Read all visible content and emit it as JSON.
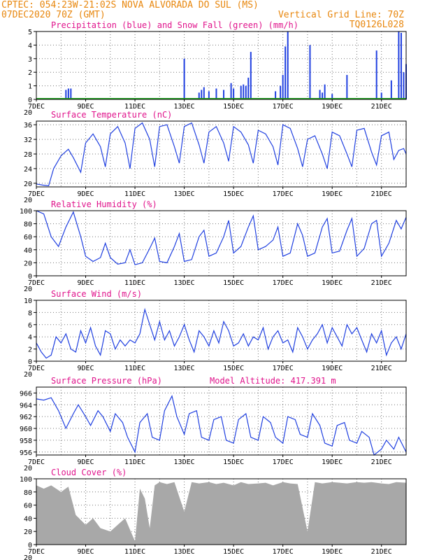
{
  "header": {
    "line1_left": "CPTEC:  054:23W-21:02S  NOVA ALVORADA DO SUL (MS)",
    "line2_left": "07DEC2020 70Z (GMT)",
    "line2_right": "Vertical Grid Line: 70Z",
    "line3_right": "TQ0126L028"
  },
  "colors": {
    "header": "#e8870e",
    "titles": "#e0148c",
    "series": "#2040e0",
    "snow": "#20a020",
    "cloud": "#a8a8a8"
  },
  "x_axis": {
    "start": "07DEC2020",
    "end": "22DEC2020",
    "labels": [
      {
        "day": 7,
        "text": "7DEC"
      },
      {
        "day": 9,
        "text": "9DEC"
      },
      {
        "day": 11,
        "text": "11DEC"
      },
      {
        "day": 13,
        "text": "13DEC"
      },
      {
        "day": 15,
        "text": "15DEC"
      },
      {
        "day": 17,
        "text": "17DEC"
      },
      {
        "day": 19,
        "text": "19DEC"
      },
      {
        "day": 21,
        "text": "21DEC"
      }
    ],
    "year_fragment": "20"
  },
  "chart_data": [
    {
      "type": "bar",
      "title": "Precipitation (blue) and Snow Fall (green) (mm/h)",
      "ylim": [
        0,
        5
      ],
      "yticks": [
        0,
        1,
        2,
        3,
        4,
        5
      ],
      "series": [
        {
          "name": "Precipitation",
          "x": [
            8.2,
            8.3,
            8.4,
            13.0,
            13.6,
            13.7,
            13.8,
            14.0,
            14.3,
            14.6,
            14.9,
            15.0,
            15.3,
            15.4,
            15.5,
            15.6,
            15.7,
            16.7,
            16.9,
            17.0,
            17.1,
            17.2,
            18.1,
            18.5,
            18.6,
            18.7,
            19.0,
            19.6,
            20.8,
            21.0,
            21.4,
            21.7,
            21.8,
            21.9,
            22.0
          ],
          "values": [
            0.7,
            0.8,
            0.8,
            3.0,
            0.5,
            0.7,
            0.9,
            0.6,
            0.8,
            0.7,
            1.2,
            0.8,
            1.0,
            1.1,
            1.0,
            1.6,
            3.5,
            0.6,
            1.0,
            1.8,
            3.9,
            5.0,
            4.0,
            0.7,
            0.5,
            1.1,
            0.4,
            1.8,
            3.6,
            0.5,
            1.4,
            5.0,
            4.9,
            2.0,
            2.6
          ]
        },
        {
          "name": "Snow Fall",
          "x": [],
          "values": []
        }
      ]
    },
    {
      "type": "line",
      "title": "Surface Temperature (nC)",
      "ylim": [
        19,
        37
      ],
      "yticks": [
        20,
        24,
        28,
        32,
        36
      ],
      "series": [
        {
          "name": "",
          "x": [
            7.0,
            7.25,
            7.5,
            7.7,
            8.0,
            8.3,
            8.5,
            8.8,
            9.0,
            9.3,
            9.6,
            9.8,
            10.0,
            10.3,
            10.6,
            10.8,
            11.0,
            11.3,
            11.6,
            11.8,
            12.0,
            12.3,
            12.6,
            12.8,
            13.0,
            13.3,
            13.6,
            13.8,
            14.0,
            14.3,
            14.6,
            14.8,
            15.0,
            15.3,
            15.6,
            15.8,
            16.0,
            16.3,
            16.6,
            16.8,
            17.0,
            17.3,
            17.6,
            17.8,
            18.0,
            18.3,
            18.6,
            18.8,
            19.0,
            19.3,
            19.6,
            19.8,
            20.0,
            20.3,
            20.6,
            20.8,
            21.0,
            21.3,
            21.5,
            21.7,
            21.9,
            22.0
          ],
          "values": [
            19.8,
            19.5,
            19.3,
            24.0,
            27.5,
            29.3,
            27.0,
            23.0,
            31.0,
            33.5,
            30.0,
            24.5,
            33.5,
            35.5,
            31.0,
            24.0,
            35.0,
            36.5,
            32.0,
            24.5,
            35.5,
            36.0,
            30.0,
            25.5,
            35.5,
            36.5,
            30.5,
            25.5,
            34.0,
            35.5,
            31.0,
            26.0,
            35.5,
            34.0,
            30.5,
            25.5,
            34.5,
            33.5,
            30.0,
            25.0,
            36.0,
            35.0,
            29.5,
            24.5,
            32.0,
            33.0,
            28.0,
            24.0,
            34.0,
            33.0,
            28.0,
            24.5,
            34.5,
            35.0,
            28.5,
            25.0,
            33.0,
            34.0,
            26.5,
            29.0,
            29.5,
            28.0
          ]
        }
      ]
    },
    {
      "type": "line",
      "title": "Relative Humidity (%)",
      "ylim": [
        0,
        100
      ],
      "yticks": [
        0,
        20,
        40,
        60,
        80,
        100
      ],
      "series": [
        {
          "name": "",
          "x": [
            7.0,
            7.3,
            7.6,
            7.9,
            8.2,
            8.5,
            8.8,
            9.0,
            9.3,
            9.6,
            9.8,
            10.0,
            10.3,
            10.6,
            10.8,
            11.0,
            11.3,
            11.6,
            11.8,
            12.0,
            12.3,
            12.6,
            12.8,
            13.0,
            13.3,
            13.6,
            13.8,
            14.0,
            14.3,
            14.6,
            14.8,
            15.0,
            15.3,
            15.6,
            15.8,
            16.0,
            16.3,
            16.6,
            16.8,
            17.0,
            17.3,
            17.6,
            17.8,
            18.0,
            18.3,
            18.6,
            18.8,
            19.0,
            19.3,
            19.6,
            19.8,
            20.0,
            20.3,
            20.6,
            20.8,
            21.0,
            21.3,
            21.6,
            21.8,
            22.0
          ],
          "values": [
            100,
            95,
            60,
            45,
            75,
            98,
            60,
            30,
            22,
            28,
            50,
            28,
            18,
            20,
            40,
            17,
            20,
            42,
            58,
            22,
            20,
            45,
            65,
            22,
            25,
            60,
            70,
            30,
            35,
            60,
            85,
            35,
            45,
            75,
            92,
            40,
            45,
            55,
            75,
            30,
            35,
            80,
            62,
            30,
            35,
            75,
            88,
            35,
            38,
            70,
            88,
            30,
            42,
            80,
            85,
            30,
            50,
            85,
            72,
            90
          ]
        }
      ]
    },
    {
      "type": "line",
      "title": "Surface Wind (m/s)",
      "ylim": [
        0,
        10
      ],
      "yticks": [
        0,
        2,
        4,
        6,
        8,
        10
      ],
      "series": [
        {
          "name": "",
          "x": [
            7.0,
            7.2,
            7.4,
            7.6,
            7.8,
            8.0,
            8.2,
            8.4,
            8.6,
            8.8,
            9.0,
            9.2,
            9.4,
            9.6,
            9.8,
            10.0,
            10.2,
            10.4,
            10.6,
            10.8,
            11.0,
            11.2,
            11.4,
            11.6,
            11.8,
            12.0,
            12.2,
            12.4,
            12.6,
            12.8,
            13.0,
            13.2,
            13.4,
            13.6,
            13.8,
            14.0,
            14.2,
            14.4,
            14.6,
            14.8,
            15.0,
            15.2,
            15.4,
            15.6,
            15.8,
            16.0,
            16.2,
            16.4,
            16.6,
            16.8,
            17.0,
            17.2,
            17.4,
            17.6,
            17.8,
            18.0,
            18.2,
            18.4,
            18.6,
            18.8,
            19.0,
            19.2,
            19.4,
            19.6,
            19.8,
            20.0,
            20.2,
            20.4,
            20.6,
            20.8,
            21.0,
            21.2,
            21.4,
            21.6,
            21.8,
            22.0
          ],
          "values": [
            3.0,
            1.5,
            0.5,
            1.0,
            4.0,
            3.0,
            4.5,
            2.0,
            1.5,
            5.0,
            3.0,
            5.5,
            2.5,
            1.0,
            5.0,
            4.5,
            2.0,
            3.5,
            2.5,
            3.5,
            3.0,
            4.5,
            8.5,
            6.0,
            3.5,
            6.5,
            3.5,
            5.0,
            2.5,
            4.0,
            6.0,
            3.5,
            1.5,
            5.0,
            4.0,
            2.5,
            5.0,
            3.0,
            6.5,
            5.0,
            2.5,
            3.0,
            4.5,
            2.5,
            4.0,
            3.5,
            5.5,
            2.0,
            4.0,
            5.0,
            3.0,
            3.5,
            1.5,
            5.5,
            4.0,
            2.0,
            3.5,
            4.5,
            6.0,
            3.0,
            5.5,
            4.0,
            2.5,
            6.0,
            4.5,
            5.5,
            3.5,
            1.5,
            4.5,
            3.0,
            5.0,
            1.0,
            3.0,
            4.0,
            2.0,
            4.5
          ]
        }
      ]
    },
    {
      "type": "line",
      "title": "Surface Pressure (hPa)",
      "annotation": "Model Altitude: 417.391  m",
      "ylim": [
        955.5,
        967
      ],
      "yticks": [
        956,
        958,
        960,
        962,
        964,
        966
      ],
      "series": [
        {
          "name": "",
          "x": [
            7.0,
            7.3,
            7.6,
            7.9,
            8.2,
            8.5,
            8.7,
            9.0,
            9.2,
            9.5,
            9.7,
            10.0,
            10.2,
            10.5,
            10.7,
            11.0,
            11.2,
            11.5,
            11.7,
            12.0,
            12.2,
            12.5,
            12.7,
            13.0,
            13.2,
            13.5,
            13.7,
            14.0,
            14.2,
            14.5,
            14.7,
            15.0,
            15.2,
            15.5,
            15.7,
            16.0,
            16.2,
            16.5,
            16.7,
            17.0,
            17.2,
            17.5,
            17.7,
            18.0,
            18.2,
            18.5,
            18.7,
            19.0,
            19.2,
            19.5,
            19.7,
            20.0,
            20.2,
            20.5,
            20.7,
            21.0,
            21.2,
            21.5,
            21.7,
            22.0
          ],
          "values": [
            965.0,
            964.8,
            965.2,
            963.0,
            960.0,
            962.5,
            964.0,
            962.0,
            960.5,
            963.0,
            962.0,
            959.5,
            962.5,
            961.0,
            958.5,
            956.0,
            961.0,
            962.5,
            958.5,
            958.0,
            963.0,
            965.5,
            962.0,
            959.0,
            962.5,
            963.0,
            958.5,
            958.0,
            961.5,
            962.0,
            958.0,
            957.5,
            961.5,
            962.5,
            958.5,
            958.0,
            962.0,
            961.0,
            958.5,
            957.5,
            962.0,
            961.5,
            959.0,
            958.5,
            962.5,
            960.5,
            957.5,
            957.0,
            960.5,
            961.0,
            958.0,
            957.5,
            959.5,
            958.5,
            955.5,
            956.5,
            958.0,
            956.5,
            958.5,
            956.0
          ]
        }
      ]
    },
    {
      "type": "area",
      "title": "Cloud Cover (%)",
      "ylim": [
        0,
        100
      ],
      "yticks": [
        0,
        20,
        40,
        60,
        80,
        100
      ],
      "series": [
        {
          "name": "",
          "x": [
            7.0,
            7.3,
            7.6,
            8.0,
            8.3,
            8.6,
            9.0,
            9.3,
            9.6,
            10.0,
            10.3,
            10.6,
            11.0,
            11.2,
            11.4,
            11.6,
            11.8,
            12.0,
            12.3,
            12.6,
            13.0,
            13.3,
            13.6,
            14.0,
            14.3,
            14.6,
            15.0,
            15.3,
            15.6,
            16.0,
            16.3,
            16.6,
            17.0,
            17.3,
            17.6,
            18.0,
            18.3,
            18.6,
            19.0,
            19.3,
            19.6,
            20.0,
            20.3,
            20.6,
            21.0,
            21.3,
            21.6,
            22.0
          ],
          "values": [
            90,
            85,
            90,
            80,
            88,
            45,
            30,
            40,
            25,
            20,
            30,
            40,
            5,
            85,
            70,
            25,
            90,
            95,
            92,
            95,
            50,
            95,
            93,
            95,
            92,
            94,
            90,
            95,
            92,
            93,
            94,
            90,
            95,
            93,
            92,
            20,
            95,
            93,
            95,
            94,
            93,
            95,
            94,
            95,
            93,
            92,
            95,
            94
          ]
        }
      ]
    }
  ]
}
